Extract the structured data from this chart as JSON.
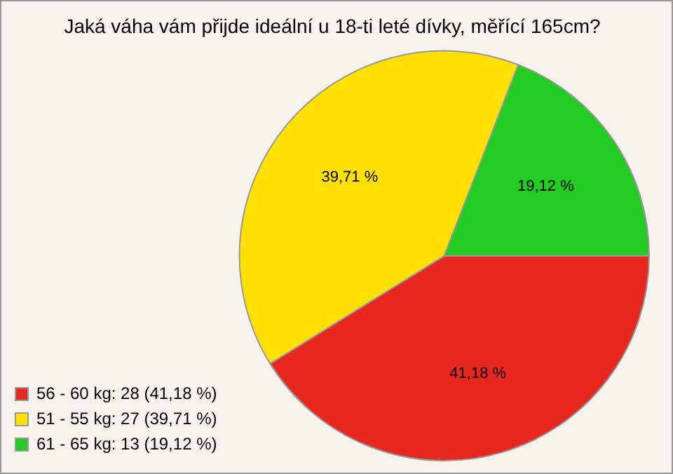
{
  "chart_data": {
    "type": "pie",
    "title": "Jaká váha vám přijde ideální u 18-ti leté dívky, měřící 165cm?",
    "categories": [
      "56 - 60 kg: 28 (41,18 %)",
      "51 - 55 kg: 27 (39,71 %)",
      "61 - 65 kg: 13 (19,12 %)"
    ],
    "values": [
      41.18,
      39.71,
      19.12
    ],
    "value_labels": [
      "41,18 %",
      "39,71 %",
      "19,12 %"
    ],
    "colors": [
      "#e8281e",
      "#ffe000",
      "#22cc22"
    ],
    "legend": "bottom left"
  }
}
